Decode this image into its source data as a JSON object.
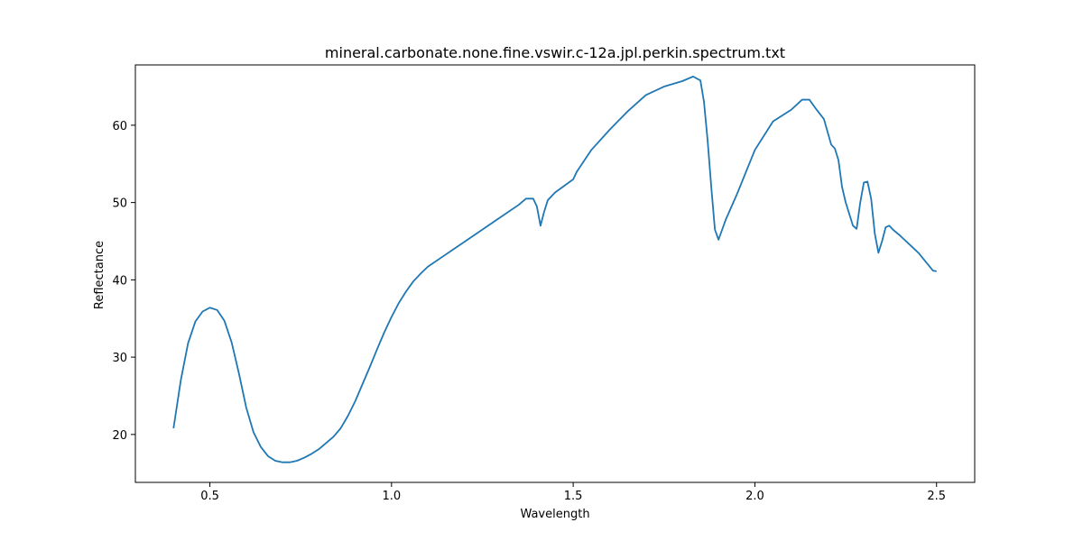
{
  "chart_data": {
    "type": "line",
    "title": "mineral.carbonate.none.fine.vswir.c-12a.jpl.perkin.spectrum.txt",
    "xlabel": "Wavelength",
    "ylabel": "Reflectance",
    "xlim": [
      0.295,
      2.605
    ],
    "ylim": [
      13.8,
      67.8
    ],
    "xticks": [
      {
        "value": 0.5,
        "label": "0.5"
      },
      {
        "value": 1.0,
        "label": "1.0"
      },
      {
        "value": 1.5,
        "label": "1.5"
      },
      {
        "value": 2.0,
        "label": "2.0"
      },
      {
        "value": 2.5,
        "label": "2.5"
      }
    ],
    "yticks": [
      {
        "value": 20,
        "label": "20"
      },
      {
        "value": 30,
        "label": "30"
      },
      {
        "value": 40,
        "label": "40"
      },
      {
        "value": 50,
        "label": "50"
      },
      {
        "value": 60,
        "label": "60"
      }
    ],
    "grid": false,
    "series": [
      {
        "color": "#1f77b4",
        "x": [
          0.4,
          0.42,
          0.44,
          0.46,
          0.48,
          0.5,
          0.52,
          0.54,
          0.56,
          0.58,
          0.6,
          0.62,
          0.64,
          0.66,
          0.68,
          0.7,
          0.72,
          0.74,
          0.76,
          0.78,
          0.8,
          0.82,
          0.84,
          0.86,
          0.88,
          0.9,
          0.92,
          0.94,
          0.96,
          0.98,
          1.0,
          1.02,
          1.04,
          1.06,
          1.08,
          1.1,
          1.15,
          1.2,
          1.25,
          1.3,
          1.35,
          1.37,
          1.39,
          1.4,
          1.41,
          1.42,
          1.43,
          1.45,
          1.5,
          1.51,
          1.55,
          1.6,
          1.65,
          1.7,
          1.75,
          1.8,
          1.83,
          1.85,
          1.86,
          1.87,
          1.88,
          1.89,
          1.9,
          1.91,
          1.92,
          1.95,
          2.0,
          2.05,
          2.1,
          2.13,
          2.15,
          2.17,
          2.19,
          2.21,
          2.22,
          2.23,
          2.24,
          2.25,
          2.27,
          2.28,
          2.29,
          2.3,
          2.31,
          2.32,
          2.33,
          2.34,
          2.35,
          2.36,
          2.37,
          2.38,
          2.4,
          2.45,
          2.49,
          2.5
        ],
        "y": [
          20.8,
          27.0,
          31.8,
          34.6,
          35.9,
          36.4,
          36.1,
          34.7,
          31.9,
          27.9,
          23.5,
          20.3,
          18.4,
          17.2,
          16.6,
          16.4,
          16.4,
          16.6,
          17.0,
          17.5,
          18.1,
          18.9,
          19.7,
          20.8,
          22.4,
          24.3,
          26.5,
          28.7,
          31.0,
          33.2,
          35.2,
          37.0,
          38.5,
          39.8,
          40.8,
          41.7,
          43.3,
          44.9,
          46.5,
          48.1,
          49.7,
          50.5,
          50.5,
          49.5,
          47.0,
          48.8,
          50.3,
          51.3,
          53.0,
          54.0,
          56.8,
          59.4,
          61.8,
          63.9,
          65.0,
          65.7,
          66.3,
          65.8,
          63.0,
          58.0,
          52.0,
          46.5,
          45.2,
          46.5,
          47.8,
          51.0,
          56.8,
          60.5,
          62.0,
          63.3,
          63.3,
          62.0,
          60.8,
          57.5,
          57.0,
          55.5,
          52.0,
          50.0,
          47.0,
          46.6,
          50.0,
          52.6,
          52.7,
          50.5,
          46.0,
          43.5,
          45.0,
          46.8,
          47.0,
          46.5,
          45.7,
          43.5,
          41.2,
          41.1
        ]
      }
    ]
  }
}
